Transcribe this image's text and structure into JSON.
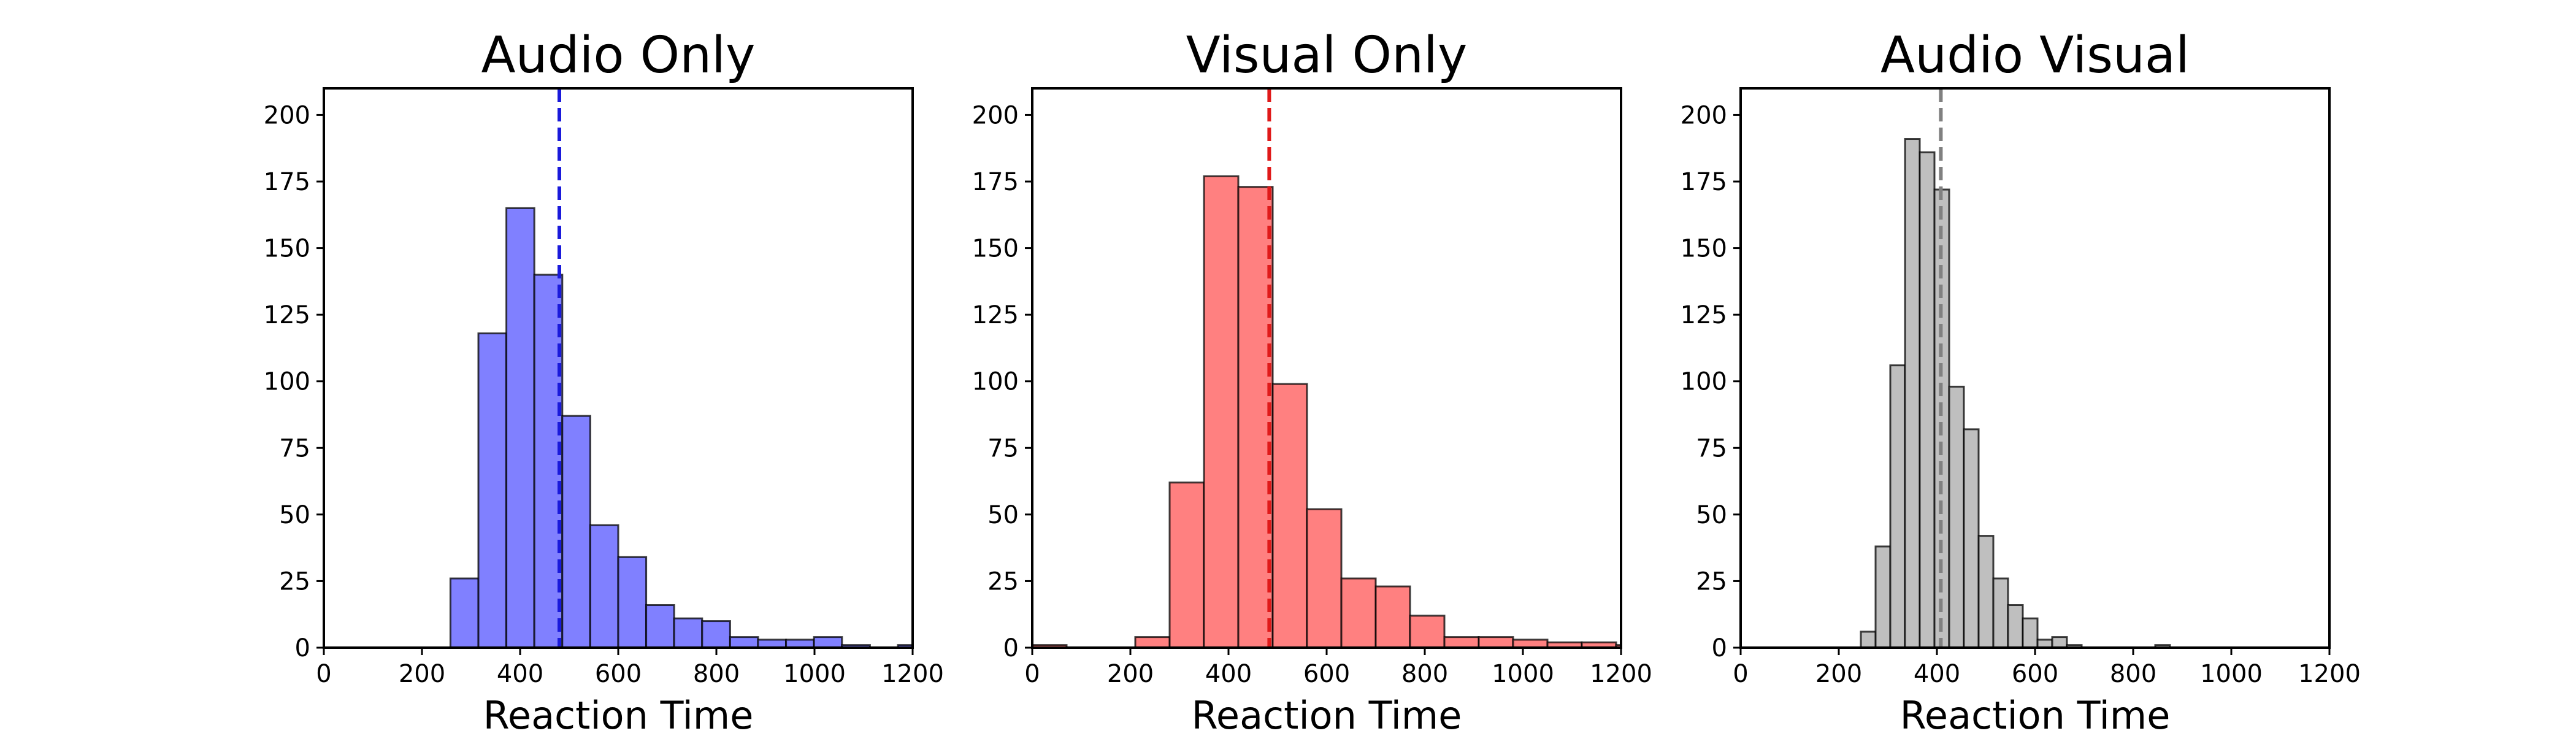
{
  "chart_data": [
    {
      "type": "bar",
      "title": "Audio Only",
      "xlabel": "Reaction Time",
      "ylabel": "",
      "xlim": [
        0,
        1200
      ],
      "ylim": [
        0,
        210
      ],
      "xticks": [
        0,
        200,
        400,
        600,
        800,
        1000,
        1200
      ],
      "yticks": [
        0,
        25,
        50,
        75,
        100,
        125,
        150,
        175,
        200
      ],
      "bar_color": "#8080ff",
      "mean_line": {
        "x": 480,
        "color": "#1a1adb"
      },
      "bins": [
        {
          "start": 258,
          "end": 315,
          "count": 26
        },
        {
          "start": 315,
          "end": 372,
          "count": 118
        },
        {
          "start": 372,
          "end": 429,
          "count": 165
        },
        {
          "start": 429,
          "end": 486,
          "count": 140
        },
        {
          "start": 486,
          "end": 543,
          "count": 87
        },
        {
          "start": 543,
          "end": 600,
          "count": 46
        },
        {
          "start": 600,
          "end": 657,
          "count": 34
        },
        {
          "start": 657,
          "end": 714,
          "count": 16
        },
        {
          "start": 714,
          "end": 771,
          "count": 11
        },
        {
          "start": 771,
          "end": 828,
          "count": 10
        },
        {
          "start": 828,
          "end": 885,
          "count": 4
        },
        {
          "start": 885,
          "end": 942,
          "count": 3
        },
        {
          "start": 942,
          "end": 999,
          "count": 3
        },
        {
          "start": 999,
          "end": 1056,
          "count": 4
        },
        {
          "start": 1056,
          "end": 1113,
          "count": 1
        },
        {
          "start": 1113,
          "end": 1170,
          "count": 0
        },
        {
          "start": 1170,
          "end": 1227,
          "count": 1
        }
      ]
    },
    {
      "type": "bar",
      "title": "Visual Only",
      "xlabel": "Reaction Time",
      "ylabel": "",
      "xlim": [
        0,
        1200
      ],
      "ylim": [
        0,
        210
      ],
      "xticks": [
        0,
        200,
        400,
        600,
        800,
        1000,
        1200
      ],
      "yticks": [
        0,
        25,
        50,
        75,
        100,
        125,
        150,
        175,
        200
      ],
      "bar_color": "#ff8080",
      "mean_line": {
        "x": 483,
        "color": "#e01a1a"
      },
      "bins": [
        {
          "start": 0,
          "end": 70,
          "count": 1
        },
        {
          "start": 70,
          "end": 140,
          "count": 0
        },
        {
          "start": 140,
          "end": 210,
          "count": 0
        },
        {
          "start": 210,
          "end": 280,
          "count": 4
        },
        {
          "start": 280,
          "end": 350,
          "count": 62
        },
        {
          "start": 350,
          "end": 420,
          "count": 177
        },
        {
          "start": 420,
          "end": 490,
          "count": 173
        },
        {
          "start": 490,
          "end": 560,
          "count": 99
        },
        {
          "start": 560,
          "end": 630,
          "count": 52
        },
        {
          "start": 630,
          "end": 700,
          "count": 26
        },
        {
          "start": 700,
          "end": 770,
          "count": 23
        },
        {
          "start": 770,
          "end": 840,
          "count": 12
        },
        {
          "start": 840,
          "end": 910,
          "count": 4
        },
        {
          "start": 910,
          "end": 980,
          "count": 4
        },
        {
          "start": 980,
          "end": 1050,
          "count": 3
        },
        {
          "start": 1050,
          "end": 1120,
          "count": 2
        },
        {
          "start": 1120,
          "end": 1190,
          "count": 2
        },
        {
          "start": 1190,
          "end": 1260,
          "count": 1
        }
      ]
    },
    {
      "type": "bar",
      "title": "Audio Visual",
      "xlabel": "Reaction Time",
      "ylabel": "",
      "xlim": [
        0,
        1200
      ],
      "ylim": [
        0,
        210
      ],
      "xticks": [
        0,
        200,
        400,
        600,
        800,
        1000,
        1200
      ],
      "yticks": [
        0,
        25,
        50,
        75,
        100,
        125,
        150,
        175,
        200
      ],
      "bar_color": "#bfbfbf",
      "mean_line": {
        "x": 408,
        "color": "#808080"
      },
      "bins": [
        {
          "start": 245,
          "end": 275,
          "count": 6
        },
        {
          "start": 275,
          "end": 305,
          "count": 38
        },
        {
          "start": 305,
          "end": 335,
          "count": 106
        },
        {
          "start": 335,
          "end": 365,
          "count": 191
        },
        {
          "start": 365,
          "end": 395,
          "count": 186
        },
        {
          "start": 395,
          "end": 425,
          "count": 172
        },
        {
          "start": 425,
          "end": 455,
          "count": 98
        },
        {
          "start": 455,
          "end": 485,
          "count": 82
        },
        {
          "start": 485,
          "end": 515,
          "count": 42
        },
        {
          "start": 515,
          "end": 545,
          "count": 26
        },
        {
          "start": 545,
          "end": 575,
          "count": 16
        },
        {
          "start": 575,
          "end": 605,
          "count": 11
        },
        {
          "start": 605,
          "end": 635,
          "count": 3
        },
        {
          "start": 635,
          "end": 665,
          "count": 4
        },
        {
          "start": 665,
          "end": 695,
          "count": 1
        },
        {
          "start": 695,
          "end": 725,
          "count": 0
        },
        {
          "start": 725,
          "end": 755,
          "count": 0
        },
        {
          "start": 755,
          "end": 785,
          "count": 0
        },
        {
          "start": 785,
          "end": 815,
          "count": 0
        },
        {
          "start": 815,
          "end": 845,
          "count": 0
        },
        {
          "start": 845,
          "end": 875,
          "count": 1
        }
      ]
    }
  ]
}
